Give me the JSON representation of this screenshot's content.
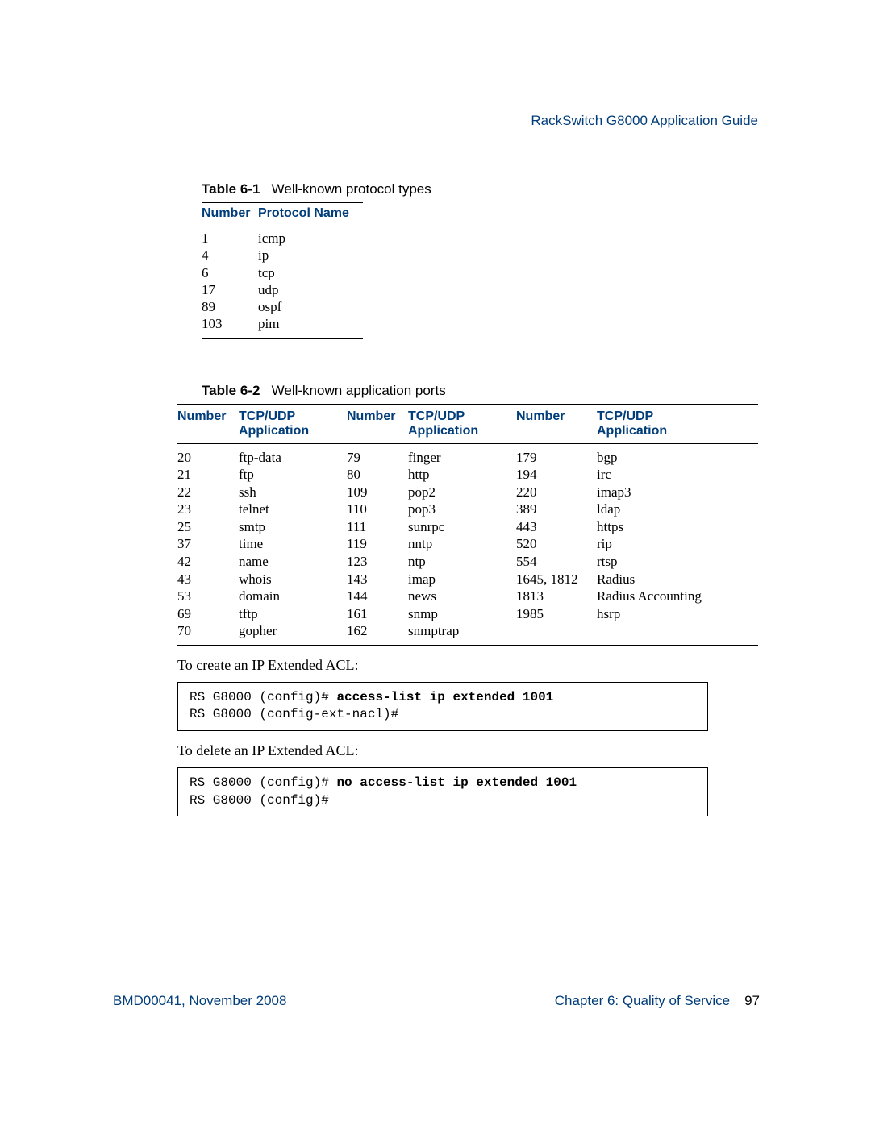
{
  "header": {
    "doc_title": "RackSwitch G8000  Application Guide"
  },
  "table1": {
    "caption_label": "Table 6-1",
    "caption_text": "Well-known protocol types",
    "header_col1": "Number",
    "header_col2": "Protocol Name",
    "rows": [
      {
        "n": "1",
        "p": "icmp"
      },
      {
        "n": "4",
        "p": "ip"
      },
      {
        "n": "6",
        "p": "tcp"
      },
      {
        "n": "17",
        "p": "udp"
      },
      {
        "n": "89",
        "p": "ospf"
      },
      {
        "n": "103",
        "p": "pim"
      }
    ]
  },
  "table2": {
    "caption_label": "Table 6-2",
    "caption_text": "Well-known application ports",
    "headers": {
      "c1": "Number",
      "c2a": "TCP/UDP",
      "c2b": "Application",
      "c3": "Number",
      "c4a": "TCP/UDP",
      "c4b": "Application",
      "c5": "Number",
      "c6a": "TCP/UDP",
      "c6b": "Application"
    },
    "rows": [
      {
        "c1": "20",
        "c2": "ftp-data",
        "c3": "79",
        "c4": "finger",
        "c5": "179",
        "c6": "bgp"
      },
      {
        "c1": "21",
        "c2": "ftp",
        "c3": "80",
        "c4": "http",
        "c5": "194",
        "c6": "irc"
      },
      {
        "c1": "22",
        "c2": "ssh",
        "c3": "109",
        "c4": "pop2",
        "c5": "220",
        "c6": "imap3"
      },
      {
        "c1": "23",
        "c2": "telnet",
        "c3": "110",
        "c4": "pop3",
        "c5": "389",
        "c6": "ldap"
      },
      {
        "c1": "25",
        "c2": "smtp",
        "c3": "111",
        "c4": "sunrpc",
        "c5": "443",
        "c6": "https"
      },
      {
        "c1": "37",
        "c2": "time",
        "c3": "119",
        "c4": "nntp",
        "c5": "520",
        "c6": "rip"
      },
      {
        "c1": "42",
        "c2": "name",
        "c3": "123",
        "c4": "ntp",
        "c5": "554",
        "c6": "rtsp"
      },
      {
        "c1": "43",
        "c2": "whois",
        "c3": "143",
        "c4": "imap",
        "c5": "1645, 1812",
        "c6": "Radius"
      },
      {
        "c1": "53",
        "c2": "domain",
        "c3": "144",
        "c4": "news",
        "c5": "1813",
        "c6": "Radius Accounting"
      },
      {
        "c1": "69",
        "c2": "tftp",
        "c3": "161",
        "c4": "snmp",
        "c5": "1985",
        "c6": "hsrp"
      },
      {
        "c1": "70",
        "c2": "gopher",
        "c3": "162",
        "c4": "snmptrap",
        "c5": "",
        "c6": ""
      }
    ]
  },
  "para1": "To create an IP Extended ACL:",
  "code1": {
    "l1_plain": "RS G8000 (config)# ",
    "l1_bold": "access-list ip extended 1001",
    "l2": "RS G8000 (config-ext-nacl)#"
  },
  "para2": "To delete an IP Extended ACL:",
  "code2": {
    "l1_plain": "RS G8000 (config)# ",
    "l1_bold": "no access-list ip extended 1001",
    "l2": "RS G8000 (config)#"
  },
  "footer": {
    "left": "BMD00041, November 2008",
    "right_chapter": "Chapter 6:  Quality of Service",
    "page": "97"
  },
  "colors": {
    "accent": "#003d7a",
    "text": "#000000",
    "background": "#ffffff"
  }
}
